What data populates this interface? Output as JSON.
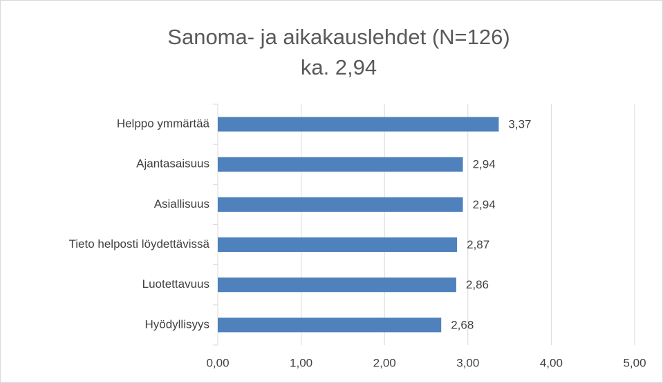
{
  "chart_data": {
    "type": "hbar",
    "title": "Sanoma- ja aikakauslehdet  (N=126)",
    "subtitle": "ka. 2,94",
    "categories": [
      "Helppo ymmärtää",
      "Ajantasaisuus",
      "Asiallisuus",
      "Tieto helposti löydettävissä",
      "Luotettavuus",
      "Hyödyllisyys"
    ],
    "values": [
      3.37,
      2.94,
      2.94,
      2.87,
      2.86,
      2.68
    ],
    "value_labels": [
      "3,37",
      "2,94",
      "2,94",
      "2,87",
      "2,86",
      "2,68"
    ],
    "color": "#4f81bd",
    "xlim": [
      0,
      5
    ],
    "xticks": [
      {
        "value": 0,
        "label": "0,00"
      },
      {
        "value": 1,
        "label": "1,00"
      },
      {
        "value": 2,
        "label": "2,00"
      },
      {
        "value": 3,
        "label": "3,00"
      },
      {
        "value": 4,
        "label": "4,00"
      },
      {
        "value": 5,
        "label": "5,00"
      }
    ],
    "grid": true
  }
}
